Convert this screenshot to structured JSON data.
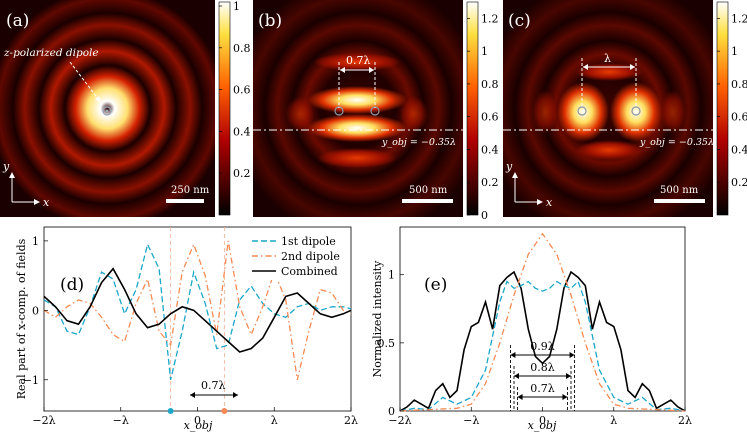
{
  "chart_data": [
    {
      "id": "a",
      "type": "heatmap",
      "panel_label": "(a)",
      "annotation": "z-polarized dipole",
      "scale_bar": "250 nm",
      "axis_y_label": "y",
      "axis_x_label": "x",
      "colorbar": {
        "min": 0,
        "max": 1,
        "ticks": [
          0.2,
          0.4,
          0.6,
          0.8,
          1
        ],
        "tick_labels": [
          "0.2",
          "0.4",
          "0.6",
          "0.8",
          "1"
        ]
      }
    },
    {
      "id": "b",
      "type": "heatmap",
      "panel_label": "(b)",
      "separation_label": "0.7λ",
      "line_label": "y_obj = −0.35λ",
      "scale_bar": "500 nm",
      "colorbar": {
        "min": 0,
        "max": 1.3,
        "ticks": [
          0,
          0.2,
          0.4,
          0.6,
          0.8,
          1,
          1.2
        ],
        "tick_labels": [
          "0",
          "0.2",
          "0.4",
          "0.6",
          "0.8",
          "1",
          "1.2"
        ]
      }
    },
    {
      "id": "c",
      "type": "heatmap",
      "panel_label": "(c)",
      "separation_label": "λ",
      "line_label": "y_obj = −0.35λ",
      "scale_bar": "500 nm",
      "axis_y_label": "y",
      "axis_x_label": "x",
      "colorbar": {
        "min": 0,
        "max": 1.3,
        "ticks": [
          0.2,
          0.4,
          0.6,
          0.8,
          1,
          1.2
        ],
        "tick_labels": [
          "0.2",
          "0.4",
          "0.6",
          "0.8",
          "1",
          "1.2"
        ]
      }
    },
    {
      "id": "d",
      "type": "line",
      "panel_label": "(d)",
      "xlabel": "x_obj",
      "ylabel": "Real part of x-comp. of fields",
      "xlim": [
        -2,
        2
      ],
      "ylim": [
        -1.45,
        1.2
      ],
      "xticks": [
        -2,
        -1,
        0,
        1,
        2
      ],
      "xtick_labels": [
        "−2λ",
        "−λ",
        "0",
        "λ",
        "2λ"
      ],
      "yticks": [
        -1,
        0,
        1
      ],
      "ytick_labels": [
        "−1",
        "0",
        "1"
      ],
      "annotation": "0.7λ",
      "dipole_positions": [
        -0.35,
        0.35
      ],
      "series": [
        {
          "name": "1st dipole",
          "style": "dashed",
          "color": "#1aa7c8",
          "x": [
            -2,
            -1.85,
            -1.7,
            -1.55,
            -1.4,
            -1.25,
            -1.1,
            -0.95,
            -0.8,
            -0.65,
            -0.5,
            -0.35,
            -0.2,
            -0.05,
            0.1,
            0.25,
            0.4,
            0.55,
            0.7,
            0.85,
            1.0,
            1.15,
            1.3,
            1.45,
            1.6,
            1.75,
            1.9,
            2.0
          ],
          "y": [
            0.15,
            0.05,
            -0.3,
            -0.35,
            0.05,
            0.55,
            0.45,
            -0.05,
            0.3,
            0.95,
            0.6,
            -1.0,
            -0.3,
            0.55,
            0.1,
            -0.55,
            -0.5,
            0.15,
            0.35,
            0.1,
            -0.05,
            -0.1,
            0.05,
            0.1,
            0.0,
            0.05,
            0.05,
            0.02
          ]
        },
        {
          "name": "2nd dipole",
          "style": "dashdot",
          "color": "#f58a55",
          "x": [
            -2,
            -1.85,
            -1.7,
            -1.55,
            -1.4,
            -1.25,
            -1.1,
            -0.95,
            -0.8,
            -0.65,
            -0.5,
            -0.35,
            -0.2,
            -0.05,
            0.1,
            0.25,
            0.4,
            0.55,
            0.7,
            0.85,
            1.0,
            1.15,
            1.3,
            1.45,
            1.6,
            1.75,
            1.9,
            2.0
          ],
          "y": [
            0.0,
            -0.1,
            0.05,
            0.15,
            0.1,
            -0.1,
            -0.35,
            -0.45,
            0.1,
            0.45,
            -0.3,
            -0.5,
            0.55,
            0.95,
            0.5,
            -0.35,
            1.0,
            0.05,
            -0.35,
            0.05,
            0.55,
            0.15,
            -1.0,
            -0.3,
            0.3,
            0.25,
            0.0,
            -0.05
          ]
        },
        {
          "name": "Combined",
          "style": "solid",
          "color": "#000000",
          "x": [
            -2,
            -1.85,
            -1.7,
            -1.55,
            -1.4,
            -1.25,
            -1.1,
            -0.95,
            -0.8,
            -0.65,
            -0.5,
            -0.35,
            -0.2,
            -0.05,
            0.1,
            0.25,
            0.4,
            0.55,
            0.7,
            0.85,
            1.0,
            1.15,
            1.3,
            1.45,
            1.6,
            1.75,
            1.9,
            2.0
          ],
          "y": [
            0.2,
            0.05,
            -0.15,
            -0.2,
            0.05,
            0.4,
            0.6,
            0.3,
            -0.05,
            -0.25,
            -0.2,
            -0.05,
            0.05,
            0.0,
            -0.15,
            -0.3,
            -0.45,
            -0.6,
            -0.55,
            -0.4,
            -0.1,
            0.2,
            0.25,
            0.1,
            -0.05,
            -0.1,
            -0.05,
            0.0
          ]
        }
      ]
    },
    {
      "id": "e",
      "type": "line",
      "panel_label": "(e)",
      "xlabel": "x_obj",
      "ylabel": "Normalized intensity",
      "xlim": [
        -2,
        2
      ],
      "ylim": [
        0,
        1.35
      ],
      "xticks": [
        -2,
        -1,
        0,
        1,
        2
      ],
      "xtick_labels": [
        "−2λ",
        "−λ",
        "0",
        "λ",
        "2λ"
      ],
      "yticks": [
        0,
        0.5,
        1
      ],
      "ytick_labels": [
        "0",
        "0.5",
        "1"
      ],
      "annotations": [
        "0.9λ",
        "0.8λ",
        "0.7λ"
      ],
      "annotation_halfwidths": [
        0.45,
        0.4,
        0.35
      ],
      "series": [
        {
          "name": "Combined",
          "style": "solid",
          "color": "#000000",
          "x": [
            -2,
            -1.9,
            -1.8,
            -1.7,
            -1.6,
            -1.5,
            -1.4,
            -1.3,
            -1.2,
            -1.1,
            -1.0,
            -0.9,
            -0.8,
            -0.7,
            -0.6,
            -0.5,
            -0.4,
            -0.3,
            -0.2,
            -0.1,
            0.0,
            0.1,
            0.2,
            0.3,
            0.4,
            0.5,
            0.6,
            0.7,
            0.8,
            0.9,
            1.0,
            1.1,
            1.2,
            1.3,
            1.4,
            1.5,
            1.6,
            1.7,
            1.8,
            1.9,
            2.0
          ],
          "y": [
            0.0,
            0.03,
            0.08,
            0.05,
            0.02,
            0.15,
            0.2,
            0.1,
            0.15,
            0.45,
            0.62,
            0.65,
            0.8,
            0.6,
            0.92,
            0.98,
            1.02,
            0.9,
            0.6,
            0.4,
            0.35,
            0.4,
            0.6,
            0.9,
            1.02,
            0.98,
            0.92,
            0.6,
            0.8,
            0.65,
            0.62,
            0.45,
            0.15,
            0.1,
            0.2,
            0.15,
            0.02,
            0.05,
            0.08,
            0.03,
            0.0
          ]
        },
        {
          "name": "1st dipole",
          "style": "dashed",
          "color": "#1aa7c8",
          "x": [
            -2,
            -1.8,
            -1.6,
            -1.4,
            -1.2,
            -1.0,
            -0.8,
            -0.7,
            -0.6,
            -0.5,
            -0.4,
            -0.3,
            -0.2,
            -0.1,
            0.0,
            0.1,
            0.2,
            0.3,
            0.4,
            0.5,
            0.6,
            0.7,
            0.8,
            1.0,
            1.2,
            1.4,
            1.6,
            1.8,
            2.0
          ],
          "y": [
            0.0,
            0.02,
            0.01,
            0.1,
            0.05,
            0.1,
            0.3,
            0.55,
            0.8,
            0.95,
            0.9,
            0.92,
            0.95,
            0.9,
            0.88,
            0.9,
            0.95,
            0.92,
            0.9,
            0.95,
            0.8,
            0.55,
            0.3,
            0.1,
            0.05,
            0.1,
            0.01,
            0.02,
            0.0
          ]
        },
        {
          "name": "2nd dipole",
          "style": "dashdot",
          "color": "#f58a55",
          "x": [
            -2,
            -1.6,
            -1.2,
            -1.0,
            -0.8,
            -0.6,
            -0.4,
            -0.2,
            0.0,
            0.2,
            0.4,
            0.6,
            0.8,
            1.0,
            1.2,
            1.6,
            2.0
          ],
          "y": [
            0.0,
            0.01,
            0.02,
            0.05,
            0.2,
            0.5,
            0.85,
            1.15,
            1.3,
            1.15,
            0.85,
            0.5,
            0.2,
            0.05,
            0.02,
            0.01,
            0.0
          ]
        }
      ]
    }
  ]
}
